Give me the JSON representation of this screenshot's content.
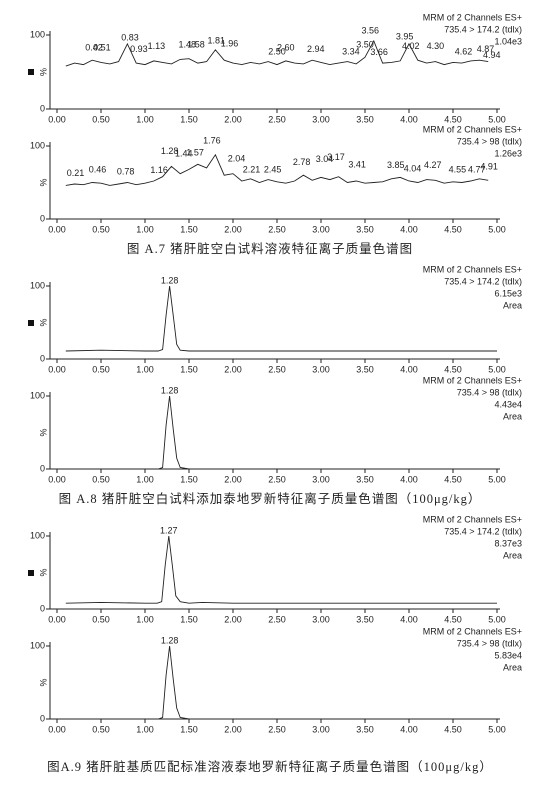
{
  "chart_data": [
    {
      "type": "line",
      "header": [
        "MRM of 2 Channels ES+",
        "735.4 > 174.2 (tdlx)",
        "1.04e3"
      ],
      "ylabel": "%",
      "x": [
        0.1,
        0.2,
        0.3,
        0.4,
        0.5,
        0.6,
        0.7,
        0.8,
        0.9,
        1.0,
        1.1,
        1.2,
        1.3,
        1.4,
        1.5,
        1.6,
        1.7,
        1.8,
        1.9,
        2.0,
        2.1,
        2.2,
        2.3,
        2.4,
        2.5,
        2.6,
        2.7,
        2.8,
        2.9,
        3.0,
        3.1,
        3.2,
        3.3,
        3.4,
        3.5,
        3.6,
        3.7,
        3.8,
        3.9,
        4.0,
        4.1,
        4.2,
        4.3,
        4.4,
        4.5,
        4.6,
        4.7,
        4.8,
        4.9
      ],
      "values": [
        58,
        62,
        60,
        66,
        63,
        61,
        64,
        88,
        62,
        60,
        65,
        63,
        61,
        67,
        68,
        62,
        64,
        80,
        66,
        62,
        60,
        63,
        61,
        64,
        60,
        65,
        62,
        61,
        66,
        63,
        60,
        62,
        64,
        61,
        70,
        92,
        62,
        63,
        65,
        88,
        66,
        62,
        64,
        60,
        63,
        62,
        65,
        66,
        64
      ],
      "color": "#222222",
      "annotations": [
        {
          "text": "0.42",
          "x": 0.42,
          "y": 82
        },
        {
          "text": "0.51",
          "x": 0.51,
          "y": 82
        },
        {
          "text": "0.83",
          "x": 0.83,
          "y": 96
        },
        {
          "text": "0.93",
          "x": 0.93,
          "y": 80
        },
        {
          "text": "1.13",
          "x": 1.13,
          "y": 84
        },
        {
          "text": "1.48",
          "x": 1.48,
          "y": 86
        },
        {
          "text": "1.58",
          "x": 1.58,
          "y": 86
        },
        {
          "text": "1.81",
          "x": 1.81,
          "y": 92
        },
        {
          "text": "1.96",
          "x": 1.96,
          "y": 88
        },
        {
          "text": "2.50",
          "x": 2.5,
          "y": 77
        },
        {
          "text": "2.60",
          "x": 2.6,
          "y": 82
        },
        {
          "text": "2.94",
          "x": 2.94,
          "y": 80
        },
        {
          "text": "3.34",
          "x": 3.34,
          "y": 77
        },
        {
          "text": "3.50",
          "x": 3.5,
          "y": 86
        },
        {
          "text": "3.56",
          "x": 3.56,
          "y": 105
        },
        {
          "text": "3.66",
          "x": 3.66,
          "y": 76
        },
        {
          "text": "3.95",
          "x": 3.95,
          "y": 97
        },
        {
          "text": "4.02",
          "x": 4.02,
          "y": 84
        },
        {
          "text": "4.30",
          "x": 4.3,
          "y": 84
        },
        {
          "text": "4.62",
          "x": 4.62,
          "y": 77
        },
        {
          "text": "4.87",
          "x": 4.87,
          "y": 80
        },
        {
          "text": "4.94",
          "x": 4.94,
          "y": 72
        }
      ],
      "xlim": [
        0,
        5
      ],
      "ylim": [
        0,
        100
      ],
      "yticks": [
        0,
        100
      ],
      "xticks": [
        {
          "value": 0,
          "label": "0.00"
        },
        {
          "value": 0.5,
          "label": "0.50"
        },
        {
          "value": 1,
          "label": "1.00"
        },
        {
          "value": 1.5,
          "label": "1.50"
        },
        {
          "value": 2,
          "label": "2.00"
        },
        {
          "value": 2.5,
          "label": "2.50"
        },
        {
          "value": 3,
          "label": "3.00"
        },
        {
          "value": 3.5,
          "label": "3.50"
        },
        {
          "value": 4,
          "label": "4.00"
        },
        {
          "value": 4.5,
          "label": "4.50"
        },
        {
          "value": 5,
          "label": "5.00"
        }
      ]
    },
    {
      "type": "line",
      "header": [
        "MRM of 2 Channels ES+",
        "735.4 > 98 (tdlx)",
        "1.26e3"
      ],
      "ylabel": "%",
      "x": [
        0.1,
        0.2,
        0.3,
        0.4,
        0.5,
        0.6,
        0.7,
        0.8,
        0.9,
        1.0,
        1.1,
        1.2,
        1.3,
        1.4,
        1.5,
        1.6,
        1.7,
        1.8,
        1.9,
        2.0,
        2.1,
        2.2,
        2.3,
        2.4,
        2.5,
        2.6,
        2.7,
        2.8,
        2.9,
        3.0,
        3.1,
        3.2,
        3.3,
        3.4,
        3.5,
        3.6,
        3.7,
        3.8,
        3.9,
        4.0,
        4.1,
        4.2,
        4.3,
        4.4,
        4.5,
        4.6,
        4.7,
        4.8,
        4.9
      ],
      "values": [
        46,
        48,
        47,
        50,
        49,
        46,
        48,
        50,
        47,
        49,
        52,
        58,
        72,
        62,
        68,
        75,
        70,
        88,
        60,
        62,
        52,
        55,
        50,
        54,
        51,
        49,
        52,
        60,
        53,
        57,
        54,
        58,
        50,
        52,
        49,
        50,
        51,
        55,
        57,
        52,
        50,
        54,
        53,
        49,
        51,
        50,
        52,
        55,
        53
      ],
      "color": "#222222",
      "annotations": [
        {
          "text": "0.21",
          "x": 0.21,
          "y": 62
        },
        {
          "text": "0.46",
          "x": 0.46,
          "y": 67
        },
        {
          "text": "0.78",
          "x": 0.78,
          "y": 64
        },
        {
          "text": "1.16",
          "x": 1.16,
          "y": 66
        },
        {
          "text": "1.28",
          "x": 1.28,
          "y": 92
        },
        {
          "text": "1.44",
          "x": 1.44,
          "y": 89
        },
        {
          "text": "1.57",
          "x": 1.57,
          "y": 90
        },
        {
          "text": "1.76",
          "x": 1.76,
          "y": 107
        },
        {
          "text": "2.04",
          "x": 2.04,
          "y": 82
        },
        {
          "text": "2.21",
          "x": 2.21,
          "y": 67
        },
        {
          "text": "2.45",
          "x": 2.45,
          "y": 67
        },
        {
          "text": "2.78",
          "x": 2.78,
          "y": 77
        },
        {
          "text": "3.04",
          "x": 3.04,
          "y": 81
        },
        {
          "text": "3.17",
          "x": 3.17,
          "y": 84
        },
        {
          "text": "3.41",
          "x": 3.41,
          "y": 74
        },
        {
          "text": "3.85",
          "x": 3.85,
          "y": 73
        },
        {
          "text": "4.04",
          "x": 4.04,
          "y": 68
        },
        {
          "text": "4.27",
          "x": 4.27,
          "y": 73
        },
        {
          "text": "4.55",
          "x": 4.55,
          "y": 67
        },
        {
          "text": "4.77",
          "x": 4.77,
          "y": 67
        },
        {
          "text": "4.91",
          "x": 4.91,
          "y": 71
        }
      ],
      "xlim": [
        0,
        5
      ],
      "ylim": [
        0,
        100
      ],
      "yticks": [
        0,
        100
      ],
      "xticks": [
        {
          "value": 0,
          "label": "0.00"
        },
        {
          "value": 0.5,
          "label": "0.50"
        },
        {
          "value": 1,
          "label": "1.00"
        },
        {
          "value": 1.5,
          "label": "1.50"
        },
        {
          "value": 2,
          "label": "2.00"
        },
        {
          "value": 2.5,
          "label": "2.50"
        },
        {
          "value": 3,
          "label": "3.00"
        },
        {
          "value": 3.5,
          "label": "3.50"
        },
        {
          "value": 4,
          "label": "4.00"
        },
        {
          "value": 4.5,
          "label": "4.50"
        },
        {
          "value": 5,
          "label": "5.00"
        }
      ]
    },
    {
      "type": "line",
      "header": [
        "MRM of 2 Channels ES+",
        "735.4 > 174.2 (tdlx)",
        "6.15e3",
        "Area"
      ],
      "ylabel": "%",
      "x": [
        0.1,
        0.5,
        1.0,
        1.15,
        1.2,
        1.24,
        1.28,
        1.32,
        1.36,
        1.4,
        1.5,
        2.0,
        3.0,
        4.0,
        5.0
      ],
      "values": [
        11,
        12,
        11,
        11,
        13,
        60,
        100,
        60,
        20,
        12,
        11,
        11,
        11,
        11,
        11
      ],
      "color": "#222222",
      "annotations": [
        {
          "text": "1.28",
          "x": 1.28,
          "y": 107
        }
      ],
      "xlim": [
        0,
        5
      ],
      "ylim": [
        0,
        100
      ],
      "yticks": [
        0,
        100
      ],
      "xticks": [
        {
          "value": 0,
          "label": "0.00"
        },
        {
          "value": 0.5,
          "label": "0.50"
        },
        {
          "value": 1,
          "label": "1.00"
        },
        {
          "value": 1.5,
          "label": "1.50"
        },
        {
          "value": 2,
          "label": "2.00"
        },
        {
          "value": 2.5,
          "label": "2.50"
        },
        {
          "value": 3,
          "label": "3.00"
        },
        {
          "value": 3.5,
          "label": "3.50"
        },
        {
          "value": 4,
          "label": "4.00"
        },
        {
          "value": 4.5,
          "label": "4.50"
        },
        {
          "value": 5,
          "label": "5.00"
        }
      ]
    },
    {
      "type": "line",
      "header": [
        "MRM of 2 Channels ES+",
        "735.4 > 98 (tdlx)",
        "4.43e4",
        "Area"
      ],
      "ylabel": "%",
      "x": [
        0.1,
        0.5,
        1.0,
        1.15,
        1.2,
        1.24,
        1.28,
        1.32,
        1.36,
        1.4,
        1.5,
        2.0,
        3.0,
        4.0,
        5.0
      ],
      "values": [
        0,
        0,
        0,
        0,
        2,
        60,
        100,
        55,
        15,
        2,
        0,
        0,
        0,
        0,
        0
      ],
      "color": "#222222",
      "annotations": [
        {
          "text": "1.28",
          "x": 1.28,
          "y": 107
        }
      ],
      "xlim": [
        0,
        5
      ],
      "ylim": [
        0,
        100
      ],
      "yticks": [
        0,
        100
      ],
      "xticks": [
        {
          "value": 0,
          "label": "0.00"
        },
        {
          "value": 0.5,
          "label": "0.50"
        },
        {
          "value": 1,
          "label": "1.00"
        },
        {
          "value": 1.5,
          "label": "1.50"
        },
        {
          "value": 2,
          "label": "2.00"
        },
        {
          "value": 2.5,
          "label": "2.50"
        },
        {
          "value": 3,
          "label": "3.00"
        },
        {
          "value": 3.5,
          "label": "3.50"
        },
        {
          "value": 4,
          "label": "4.00"
        },
        {
          "value": 4.5,
          "label": "4.50"
        },
        {
          "value": 5,
          "label": "5.00"
        }
      ]
    },
    {
      "type": "line",
      "header": [
        "MRM of 2 Channels ES+",
        "735.4 > 174.2 (tdlx)",
        "8.37e3",
        "Area"
      ],
      "ylabel": "%",
      "x": [
        0.1,
        0.5,
        1.0,
        1.14,
        1.19,
        1.23,
        1.27,
        1.31,
        1.35,
        1.4,
        1.5,
        1.65,
        2.0,
        3.0,
        4.0,
        5.0
      ],
      "values": [
        8,
        9,
        8,
        8,
        10,
        60,
        100,
        60,
        18,
        10,
        8,
        9,
        8,
        8,
        8,
        8
      ],
      "color": "#222222",
      "annotations": [
        {
          "text": "1.27",
          "x": 1.27,
          "y": 107
        }
      ],
      "xlim": [
        0,
        5
      ],
      "ylim": [
        0,
        100
      ],
      "yticks": [
        0,
        100
      ],
      "xticks": [
        {
          "value": 0,
          "label": "0.00"
        },
        {
          "value": 0.5,
          "label": "0.50"
        },
        {
          "value": 1,
          "label": "1.00"
        },
        {
          "value": 1.5,
          "label": "1.50"
        },
        {
          "value": 2,
          "label": "2.00"
        },
        {
          "value": 2.5,
          "label": "2.50"
        },
        {
          "value": 3,
          "label": "3.00"
        },
        {
          "value": 3.5,
          "label": "3.50"
        },
        {
          "value": 4,
          "label": "4.00"
        },
        {
          "value": 4.5,
          "label": "4.50"
        },
        {
          "value": 5,
          "label": "5.00"
        }
      ]
    },
    {
      "type": "line",
      "header": [
        "MRM of 2 Channels ES+",
        "735.4 > 98 (tdlx)",
        "5.83e4",
        "Area"
      ],
      "ylabel": "%",
      "x": [
        0.1,
        0.5,
        1.0,
        1.15,
        1.2,
        1.24,
        1.28,
        1.32,
        1.36,
        1.4,
        1.5,
        2.0,
        3.0,
        4.0,
        5.0
      ],
      "values": [
        0,
        0,
        0,
        0,
        2,
        60,
        100,
        55,
        15,
        2,
        0,
        0,
        0,
        0,
        0
      ],
      "color": "#222222",
      "annotations": [
        {
          "text": "1.28",
          "x": 1.28,
          "y": 107
        }
      ],
      "xlim": [
        0,
        5
      ],
      "ylim": [
        0,
        100
      ],
      "yticks": [
        0,
        100
      ],
      "xticks": [
        {
          "value": 0,
          "label": "0.00"
        },
        {
          "value": 0.5,
          "label": "0.50"
        },
        {
          "value": 1,
          "label": "1.00"
        },
        {
          "value": 1.5,
          "label": "1.50"
        },
        {
          "value": 2,
          "label": "2.00"
        },
        {
          "value": 2.5,
          "label": "2.50"
        },
        {
          "value": 3,
          "label": "3.00"
        },
        {
          "value": 3.5,
          "label": "3.50"
        },
        {
          "value": 4,
          "label": "4.00"
        },
        {
          "value": 4.5,
          "label": "4.50"
        },
        {
          "value": 5,
          "label": "5.00"
        }
      ]
    }
  ],
  "captions": [
    "图 A.7  猪肝脏空白试料溶液特征离子质量色谱图",
    "图 A.8  猪肝脏空白试料添加泰地罗新特征离子质量色谱图（100μg/kg）",
    "图A.9  猪肝脏基质匹配标准溶液泰地罗新特征离子质量色谱图（100μg/kg）"
  ]
}
